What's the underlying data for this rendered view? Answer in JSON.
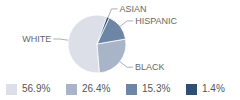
{
  "chart_data": {
    "type": "pie",
    "categories": [
      "WHITE",
      "BLACK",
      "HISPANIC",
      "ASIAN"
    ],
    "values": [
      56.9,
      26.4,
      15.3,
      1.4
    ],
    "value_labels": [
      "56.9%",
      "26.4%",
      "15.3%",
      "1.4%"
    ],
    "colors": [
      "#dcdfe7",
      "#a8b4c7",
      "#6d86a6",
      "#2d4f74"
    ]
  }
}
